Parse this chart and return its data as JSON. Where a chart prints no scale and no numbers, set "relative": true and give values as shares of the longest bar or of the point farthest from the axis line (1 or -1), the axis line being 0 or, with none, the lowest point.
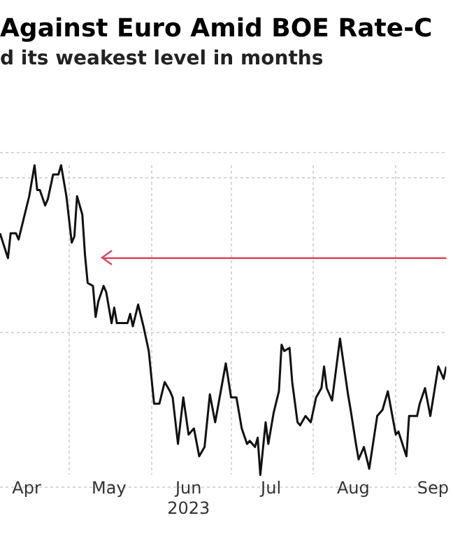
{
  "chart_data": {
    "type": "line",
    "title": "Against Euro Amid BOE Rate-C",
    "subtitle": "d its weakest level in months",
    "relative": true,
    "grid": true,
    "legend": false,
    "marker": "none",
    "line_style": "solid",
    "xlim": [
      "2023-04-05",
      "2023-09-20"
    ],
    "xticks": [
      {
        "value": "2023-04-15",
        "label": "Apr"
      },
      {
        "value": "2023-05-01",
        "label": null
      },
      {
        "value": "2023-05-16",
        "label": "May"
      },
      {
        "value": "2023-06-01",
        "label": null
      },
      {
        "value": "2023-06-15",
        "label": "Jun\n2023"
      },
      {
        "value": "2023-07-01",
        "label": null
      },
      {
        "value": "2023-07-16",
        "label": "Jul"
      },
      {
        "value": "2023-08-01",
        "label": null
      },
      {
        "value": "2023-08-16",
        "label": "Aug"
      },
      {
        "value": "2023-09-01",
        "label": null
      },
      {
        "value": "2023-09-15",
        "label": "Sep"
      }
    ],
    "x": [
      "2023-04-05",
      "2023-04-08",
      "2023-04-09",
      "2023-04-11",
      "2023-04-12",
      "2023-04-14",
      "2023-04-16",
      "2023-04-18",
      "2023-04-19",
      "2023-04-20",
      "2023-04-22",
      "2023-04-23",
      "2023-04-25",
      "2023-04-27",
      "2023-04-28",
      "2023-04-30",
      "2023-05-02",
      "2023-05-03",
      "2023-05-04",
      "2023-05-06",
      "2023-05-07",
      "2023-05-08",
      "2023-05-10",
      "2023-05-11",
      "2023-05-12",
      "2023-05-14",
      "2023-05-15",
      "2023-05-17",
      "2023-05-18",
      "2023-05-19",
      "2023-05-21",
      "2023-05-23",
      "2023-05-24",
      "2023-05-25",
      "2023-05-27",
      "2023-05-29",
      "2023-05-31",
      "2023-06-02",
      "2023-06-04",
      "2023-06-06",
      "2023-06-08",
      "2023-06-09",
      "2023-06-11",
      "2023-06-13",
      "2023-06-15",
      "2023-06-17",
      "2023-06-19",
      "2023-06-21",
      "2023-06-23",
      "2023-06-25",
      "2023-06-29",
      "2023-07-01",
      "2023-07-03",
      "2023-07-05",
      "2023-07-07",
      "2023-07-08",
      "2023-07-10",
      "2023-07-11",
      "2023-07-12",
      "2023-07-14",
      "2023-07-15",
      "2023-07-17",
      "2023-07-19",
      "2023-07-20",
      "2023-07-21",
      "2023-07-23",
      "2023-07-24",
      "2023-07-26",
      "2023-07-27",
      "2023-07-29",
      "2023-07-30",
      "2023-07-31",
      "2023-08-02",
      "2023-08-04",
      "2023-08-05",
      "2023-08-06",
      "2023-08-08",
      "2023-08-11",
      "2023-08-14",
      "2023-08-15",
      "2023-08-17",
      "2023-08-18",
      "2023-08-20",
      "2023-08-22",
      "2023-08-25",
      "2023-08-27",
      "2023-08-29",
      "2023-09-01",
      "2023-09-02",
      "2023-09-05",
      "2023-09-06",
      "2023-09-09",
      "2023-09-10",
      "2023-09-12",
      "2023-09-14",
      "2023-09-17",
      "2023-09-19",
      "2023-09-20"
    ],
    "series": [
      {
        "color": "#111111",
        "values": [
          0.78,
          0.7,
          0.78,
          0.78,
          0.76,
          0.83,
          0.9,
          1.0,
          0.92,
          0.92,
          0.87,
          0.89,
          0.97,
          0.97,
          1.0,
          0.9,
          0.75,
          0.77,
          0.9,
          0.84,
          0.71,
          0.62,
          0.61,
          0.51,
          0.56,
          0.61,
          0.59,
          0.49,
          0.54,
          0.49,
          0.49,
          0.49,
          0.52,
          0.48,
          0.55,
          0.48,
          0.4,
          0.23,
          0.23,
          0.3,
          0.27,
          0.25,
          0.1,
          0.25,
          0.13,
          0.15,
          0.06,
          0.09,
          0.26,
          0.17,
          0.36,
          0.25,
          0.25,
          0.15,
          0.1,
          0.11,
          0.09,
          0.12,
          0.0,
          0.17,
          0.1,
          0.2,
          0.27,
          0.42,
          0.4,
          0.41,
          0.3,
          0.17,
          0.16,
          0.19,
          0.18,
          0.17,
          0.25,
          0.28,
          0.35,
          0.28,
          0.24,
          0.44,
          0.26,
          0.21,
          0.1,
          0.05,
          0.09,
          0.02,
          0.19,
          0.21,
          0.27,
          0.13,
          0.14,
          0.06,
          0.19,
          0.19,
          0.23,
          0.28,
          0.19,
          0.35,
          0.31,
          0.35
        ]
      }
    ],
    "ref_lines": [
      {
        "axis": "y",
        "value": 0.7,
        "color": "#e0445a"
      }
    ]
  }
}
